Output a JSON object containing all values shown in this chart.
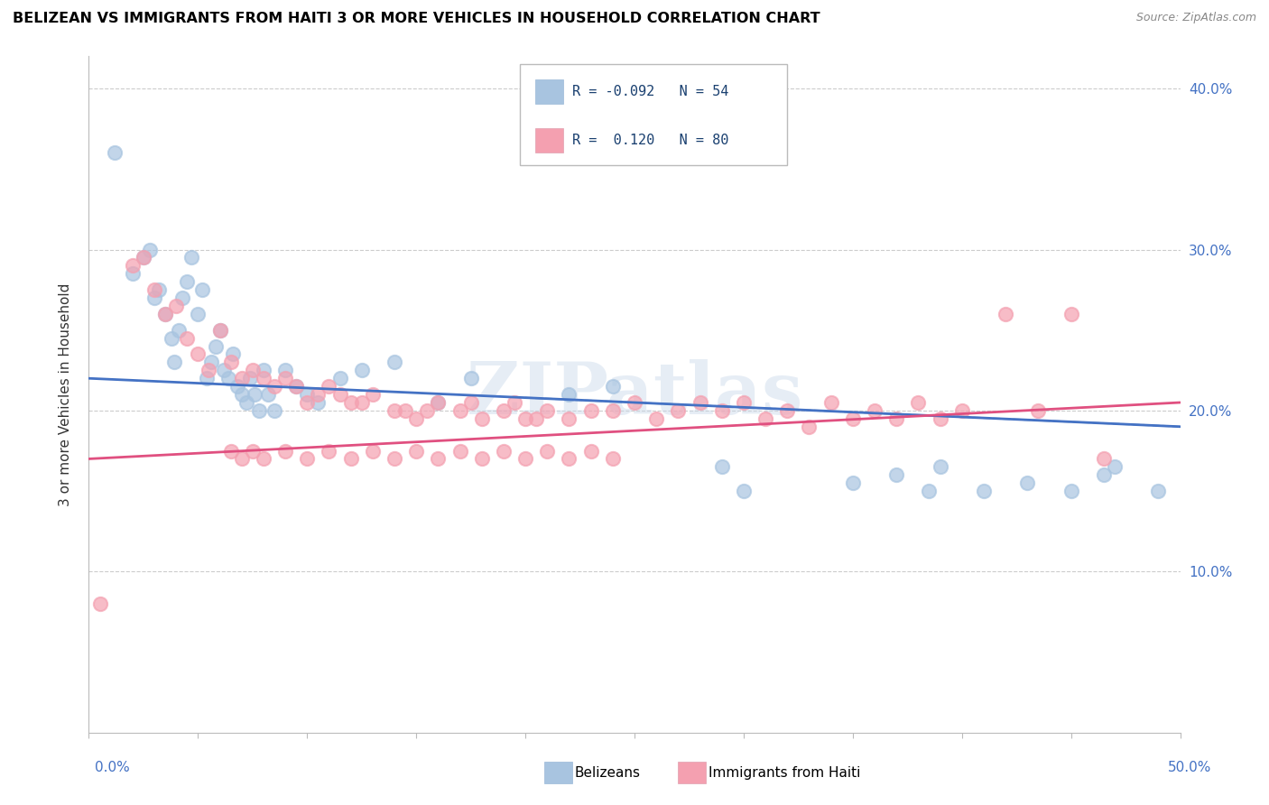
{
  "title": "BELIZEAN VS IMMIGRANTS FROM HAITI 3 OR MORE VEHICLES IN HOUSEHOLD CORRELATION CHART",
  "source": "Source: ZipAtlas.com",
  "ylabel": "3 or more Vehicles in Household",
  "ytick_labels": [
    "10.0%",
    "20.0%",
    "30.0%",
    "40.0%"
  ],
  "ytick_vals": [
    10,
    20,
    30,
    40
  ],
  "xtick_vals": [
    0,
    5,
    10,
    15,
    20,
    25,
    30,
    35,
    40,
    45,
    50
  ],
  "legend_r_blue": "R = -0.092",
  "legend_n_blue": "N = 54",
  "legend_r_pink": "R =  0.120",
  "legend_n_pink": "N = 80",
  "legend_label_blue": "Belizeans",
  "legend_label_pink": "Immigrants from Haiti",
  "belizean_color": "#a8c4e0",
  "haiti_color": "#f4a0b0",
  "belizean_line_color": "#4472c4",
  "haiti_line_color": "#e05080",
  "dashed_line_color": "#9ab8d8",
  "watermark": "ZIPatlas",
  "xlim": [
    0,
    50
  ],
  "ylim": [
    0,
    42
  ],
  "belizean_x": [
    1.2,
    2.0,
    2.5,
    2.8,
    3.0,
    3.2,
    3.5,
    3.8,
    3.9,
    4.1,
    4.3,
    4.5,
    4.7,
    5.0,
    5.2,
    5.4,
    5.6,
    5.8,
    6.0,
    6.2,
    6.4,
    6.6,
    6.8,
    7.0,
    7.2,
    7.4,
    7.6,
    7.8,
    8.0,
    8.2,
    8.5,
    9.0,
    9.5,
    10.0,
    10.5,
    11.5,
    12.5,
    14.0,
    16.0,
    17.5,
    22.0,
    24.0,
    29.0,
    30.0,
    35.0,
    37.0,
    38.5,
    39.0,
    41.0,
    43.0,
    45.0,
    46.5,
    47.0,
    49.0
  ],
  "belizean_y": [
    36.0,
    28.5,
    29.5,
    30.0,
    27.0,
    27.5,
    26.0,
    24.5,
    23.0,
    25.0,
    27.0,
    28.0,
    29.5,
    26.0,
    27.5,
    22.0,
    23.0,
    24.0,
    25.0,
    22.5,
    22.0,
    23.5,
    21.5,
    21.0,
    20.5,
    22.0,
    21.0,
    20.0,
    22.5,
    21.0,
    20.0,
    22.5,
    21.5,
    21.0,
    20.5,
    22.0,
    22.5,
    23.0,
    20.5,
    22.0,
    21.0,
    21.5,
    16.5,
    15.0,
    15.5,
    16.0,
    15.0,
    16.5,
    15.0,
    15.5,
    15.0,
    16.0,
    16.5,
    15.0
  ],
  "haiti_x": [
    0.5,
    2.0,
    2.5,
    3.0,
    3.5,
    4.0,
    4.5,
    5.0,
    5.5,
    6.0,
    6.5,
    7.0,
    7.5,
    8.0,
    8.5,
    9.0,
    9.5,
    10.0,
    10.5,
    11.0,
    11.5,
    12.0,
    12.5,
    13.0,
    14.0,
    14.5,
    15.0,
    15.5,
    16.0,
    17.0,
    17.5,
    18.0,
    19.0,
    19.5,
    20.0,
    20.5,
    21.0,
    22.0,
    23.0,
    24.0,
    25.0,
    26.0,
    27.0,
    28.0,
    29.0,
    30.0,
    31.0,
    32.0,
    33.0,
    34.0,
    35.0,
    36.0,
    37.0,
    38.0,
    39.0,
    40.0,
    42.0,
    43.5,
    45.0,
    46.5,
    6.5,
    7.0,
    7.5,
    8.0,
    9.0,
    10.0,
    11.0,
    12.0,
    13.0,
    14.0,
    15.0,
    16.0,
    17.0,
    18.0,
    19.0,
    20.0,
    21.0,
    22.0,
    23.0,
    24.0
  ],
  "haiti_y": [
    8.0,
    29.0,
    29.5,
    27.5,
    26.0,
    26.5,
    24.5,
    23.5,
    22.5,
    25.0,
    23.0,
    22.0,
    22.5,
    22.0,
    21.5,
    22.0,
    21.5,
    20.5,
    21.0,
    21.5,
    21.0,
    20.5,
    20.5,
    21.0,
    20.0,
    20.0,
    19.5,
    20.0,
    20.5,
    20.0,
    20.5,
    19.5,
    20.0,
    20.5,
    19.5,
    19.5,
    20.0,
    19.5,
    20.0,
    20.0,
    20.5,
    19.5,
    20.0,
    20.5,
    20.0,
    20.5,
    19.5,
    20.0,
    19.0,
    20.5,
    19.5,
    20.0,
    19.5,
    20.5,
    19.5,
    20.0,
    26.0,
    20.0,
    26.0,
    17.0,
    17.5,
    17.0,
    17.5,
    17.0,
    17.5,
    17.0,
    17.5,
    17.0,
    17.5,
    17.0,
    17.5,
    17.0,
    17.5,
    17.0,
    17.5,
    17.0,
    17.5,
    17.0,
    17.5,
    17.0
  ]
}
